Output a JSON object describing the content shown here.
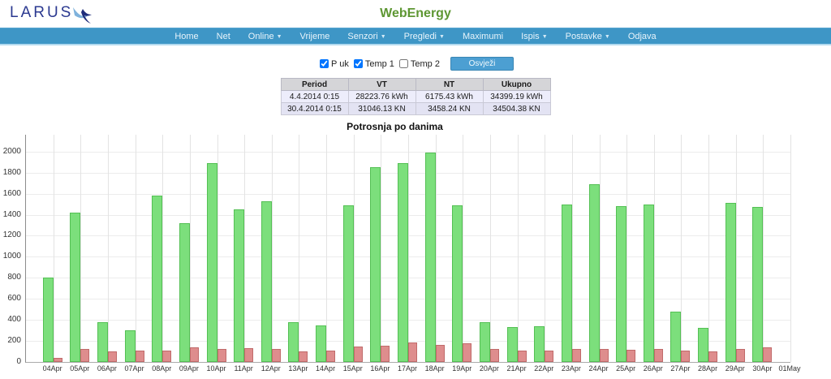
{
  "header": {
    "logo_text": "LARUS",
    "app_title": "WebEnergy"
  },
  "nav": {
    "items": [
      {
        "label": "Home",
        "caret": false
      },
      {
        "label": "Net",
        "caret": false
      },
      {
        "label": "Online",
        "caret": true
      },
      {
        "label": "Vrijeme",
        "caret": false
      },
      {
        "label": "Senzori",
        "caret": true
      },
      {
        "label": "Pregledi",
        "caret": true
      },
      {
        "label": "Maximumi",
        "caret": false
      },
      {
        "label": "Ispis",
        "caret": true
      },
      {
        "label": "Postavke",
        "caret": true
      },
      {
        "label": "Odjava",
        "caret": false
      }
    ]
  },
  "controls": {
    "checkboxes": [
      {
        "label": "P uk",
        "checked": true
      },
      {
        "label": "Temp 1",
        "checked": true
      },
      {
        "label": "Temp 2",
        "checked": false
      }
    ],
    "refresh_label": "Osvježi"
  },
  "summary_table": {
    "headers": [
      "Period",
      "VT",
      "NT",
      "Ukupno"
    ],
    "rows": [
      [
        "4.4.2014 0:15",
        "28223.76 kWh",
        "6175.43 kWh",
        "34399.19 kWh"
      ],
      [
        "30.4.2014 0:15",
        "31046.13 KN",
        "3458.24 KN",
        "34504.38 KN"
      ]
    ]
  },
  "chart_data": {
    "type": "bar",
    "title": "Potrosnja po danima",
    "xlabel": "",
    "ylabel": "",
    "ylim": [
      0,
      2160
    ],
    "ytick_step": 200,
    "ytick_max": 2000,
    "grid": true,
    "legend_position": "none",
    "categories": [
      "04Apr",
      "05Apr",
      "06Apr",
      "07Apr",
      "08Apr",
      "09Apr",
      "10Apr",
      "11Apr",
      "12Apr",
      "13Apr",
      "14Apr",
      "15Apr",
      "16Apr",
      "17Apr",
      "18Apr",
      "19Apr",
      "20Apr",
      "21Apr",
      "22Apr",
      "23Apr",
      "24Apr",
      "25Apr",
      "26Apr",
      "27Apr",
      "28Apr",
      "29Apr",
      "30Apr",
      "01May"
    ],
    "series": [
      {
        "name": "P uk",
        "color": "#7CDF7C",
        "border_color": "#54C054",
        "values": [
          800,
          1420,
          375,
          300,
          1580,
          1320,
          1890,
          1450,
          1525,
          380,
          350,
          1490,
          1850,
          1890,
          1990,
          1490,
          380,
          330,
          340,
          1500,
          1690,
          1480,
          1500,
          475,
          325,
          1510,
          1470,
          0
        ]
      },
      {
        "name": "Temp 1",
        "color": "#DE8D8D",
        "border_color": "#C06A6A",
        "values": [
          40,
          120,
          100,
          105,
          110,
          135,
          125,
          130,
          120,
          100,
          105,
          145,
          155,
          185,
          160,
          180,
          120,
          105,
          105,
          125,
          120,
          115,
          120,
          108,
          100,
          120,
          140,
          0
        ]
      }
    ]
  },
  "colors": {
    "navbar": "#3E96C6",
    "brand_green": "#5E9733",
    "brand_navy": "#2B3990",
    "button_blue": "#4C9FD2"
  }
}
